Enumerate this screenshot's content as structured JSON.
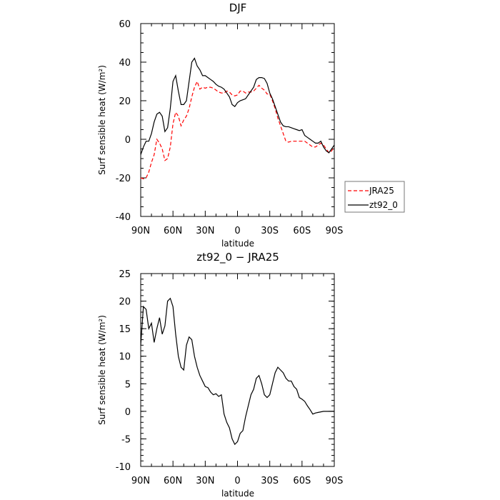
{
  "chart_data": [
    {
      "type": "line",
      "title": "DJF",
      "xlabel": "latitude",
      "ylabel": "Surf sensible heat (W/m²)",
      "xlim": [
        90,
        -90
      ],
      "ylim": [
        -40,
        60
      ],
      "x_tick_values": [
        90,
        60,
        30,
        0,
        -30,
        -60,
        -90
      ],
      "x_tick_labels": [
        "90N",
        "60N",
        "30N",
        "0",
        "30S",
        "60S",
        "90S"
      ],
      "y_ticks": [
        -40,
        -20,
        0,
        20,
        40,
        60
      ],
      "legend_position": "right",
      "colors": {
        "JRA25": "#ff0000",
        "zt92_0": "#000000"
      },
      "series": [
        {
          "name": "JRA25",
          "style": "dashed",
          "x": [
            90,
            87.5,
            85,
            82.5,
            80,
            77.5,
            75,
            72.5,
            70,
            67.5,
            65,
            62.5,
            60,
            57.5,
            55,
            52.5,
            50,
            47.5,
            45,
            42.5,
            40,
            37.5,
            35,
            32.5,
            30,
            27.5,
            25,
            22.5,
            20,
            17.5,
            15,
            12.5,
            10,
            7.5,
            5,
            2.5,
            0,
            -2.5,
            -5,
            -7.5,
            -10,
            -12.5,
            -15,
            -17.5,
            -20,
            -22.5,
            -25,
            -27.5,
            -30,
            -32.5,
            -35,
            -37.5,
            -40,
            -42.5,
            -45,
            -47.5,
            -50,
            -52.5,
            -55,
            -57.5,
            -60,
            -62.5,
            -65,
            -67.5,
            -70,
            -72.5,
            -75,
            -77.5,
            -80,
            -82.5,
            -85,
            -87.5,
            -90
          ],
          "values": [
            -20,
            -20.5,
            -20,
            -17,
            -12,
            -8,
            0,
            -2,
            -5,
            -11,
            -10,
            -4,
            8,
            14,
            12,
            7,
            10,
            12,
            16,
            22,
            27,
            30,
            26,
            27,
            26.5,
            27,
            27,
            26.5,
            25.5,
            24.5,
            24,
            24,
            25,
            24.5,
            23,
            22.5,
            23,
            25,
            25,
            24,
            24.5,
            24.5,
            25,
            26.5,
            28,
            26.5,
            25.5,
            23.5,
            23.5,
            20,
            16,
            11,
            7,
            3,
            -1,
            -1.5,
            -1,
            -1,
            -1,
            -1,
            -1,
            -1,
            -2,
            -3,
            -4,
            -4,
            -3,
            -2,
            -3,
            -5,
            -7,
            -6,
            -4
          ]
        },
        {
          "name": "zt92_0",
          "style": "solid",
          "x": [
            90,
            87.5,
            85,
            82.5,
            80,
            77.5,
            75,
            72.5,
            70,
            67.5,
            65,
            62.5,
            60,
            57.5,
            55,
            52.5,
            50,
            47.5,
            45,
            42.5,
            40,
            37.5,
            35,
            32.5,
            30,
            27.5,
            25,
            22.5,
            20,
            17.5,
            15,
            12.5,
            10,
            7.5,
            5,
            2.5,
            0,
            -2.5,
            -5,
            -7.5,
            -10,
            -12.5,
            -15,
            -17.5,
            -20,
            -22.5,
            -25,
            -27.5,
            -30,
            -32.5,
            -35,
            -37.5,
            -40,
            -42.5,
            -45,
            -47.5,
            -50,
            -52.5,
            -55,
            -57.5,
            -60,
            -62.5,
            -65,
            -67.5,
            -70,
            -72.5,
            -75,
            -77.5,
            -80,
            -82.5,
            -85,
            -87.5,
            -90
          ],
          "values": [
            -8,
            -4,
            -1,
            -1,
            3,
            9,
            13,
            14,
            12,
            4,
            6,
            16,
            30,
            33,
            25,
            18,
            18,
            20,
            30,
            40,
            42,
            38,
            36,
            33,
            33,
            32,
            31,
            30,
            28.5,
            27.5,
            27,
            26,
            24,
            22,
            18,
            17,
            19,
            20,
            20.5,
            21,
            23,
            25,
            27,
            31,
            32,
            32,
            31.5,
            29,
            24,
            21,
            17,
            13,
            9,
            7,
            6.5,
            6.5,
            6,
            5.5,
            5,
            4.5,
            5,
            2,
            1,
            0,
            -1,
            -2,
            -2,
            -1,
            -4,
            -6,
            -7,
            -5,
            -3
          ]
        }
      ]
    },
    {
      "type": "line",
      "title": "zt92_0 − JRA25",
      "xlabel": "latitude",
      "ylabel": "Surf sensible heat (W/m²)",
      "xlim": [
        90,
        -90
      ],
      "ylim": [
        -10,
        25
      ],
      "x_tick_values": [
        90,
        60,
        30,
        0,
        -30,
        -60,
        -90
      ],
      "x_tick_labels": [
        "90N",
        "60N",
        "30N",
        "0",
        "30S",
        "60S",
        "90S"
      ],
      "y_ticks": [
        -10,
        -5,
        0,
        5,
        10,
        15,
        20,
        25
      ],
      "colors": {
        "difference": "#000000"
      },
      "series": [
        {
          "x": [
            90,
            87.5,
            85,
            82.5,
            80,
            77.5,
            75,
            72.5,
            70,
            67.5,
            65,
            62.5,
            60,
            57.5,
            55,
            52.5,
            50,
            47.5,
            45,
            42.5,
            40,
            37.5,
            35,
            32.5,
            30,
            27.5,
            25,
            22.5,
            20,
            17.5,
            15,
            12.5,
            10,
            7.5,
            5,
            2.5,
            0,
            -2.5,
            -5,
            -7.5,
            -10,
            -12.5,
            -15,
            -17.5,
            -20,
            -22.5,
            -25,
            -27.5,
            -30,
            -32.5,
            -35,
            -37.5,
            -40,
            -42.5,
            -45,
            -47.5,
            -50,
            -52.5,
            -55,
            -57.5,
            -60,
            -62.5,
            -65,
            -67.5,
            -70,
            -72.5,
            -75,
            -77.5,
            -80,
            -82.5,
            -85,
            -87.5,
            -90
          ],
          "values": [
            12,
            19,
            18.5,
            15,
            16,
            12.5,
            15,
            17,
            14,
            15.5,
            20,
            20.5,
            19,
            14,
            10,
            8,
            7.5,
            12,
            13.5,
            13,
            10,
            8,
            6.5,
            5.5,
            4.5,
            4.3,
            3.5,
            3,
            3.2,
            2.7,
            3,
            -0.5,
            -2,
            -3,
            -5,
            -6,
            -5.5,
            -4,
            -3.5,
            -1,
            1,
            3,
            4,
            6,
            6.5,
            5,
            3,
            2.5,
            3,
            5,
            7,
            8,
            7.5,
            7,
            6,
            5.5,
            5.5,
            4.5,
            4,
            2.5,
            2.2,
            1.8,
            1,
            0.3,
            -0.5,
            -0.3,
            -0.2,
            -0.1,
            0,
            0,
            0,
            0,
            0
          ]
        }
      ]
    }
  ]
}
